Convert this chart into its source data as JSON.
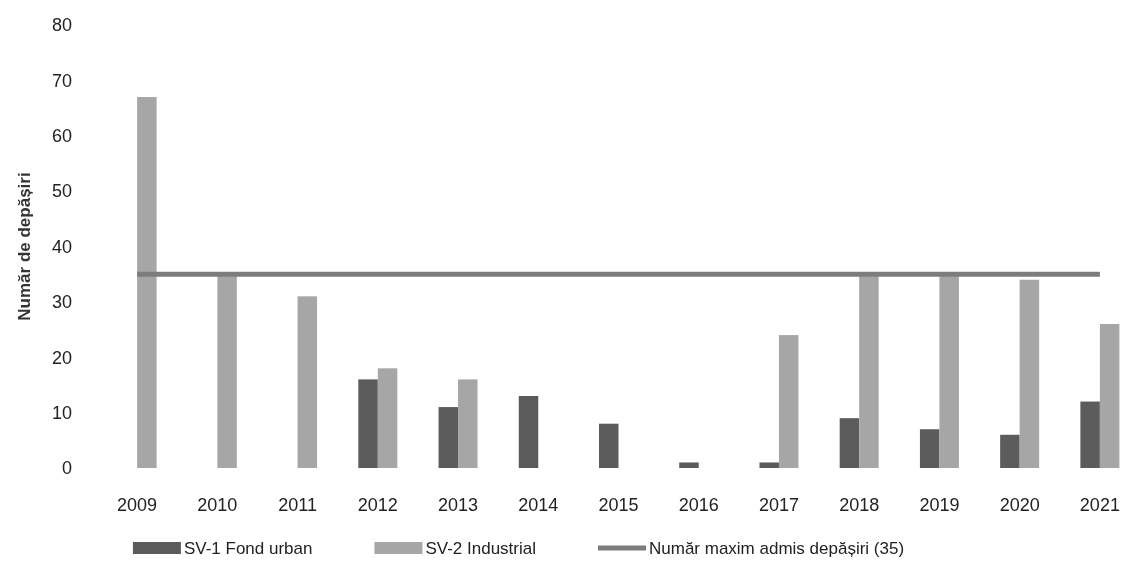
{
  "chart_data": {
    "type": "bar",
    "ylabel": "Număr de depășiri",
    "categories": [
      "2009",
      "2010",
      "2011",
      "2012",
      "2013",
      "2014",
      "2015",
      "2016",
      "2017",
      "2018",
      "2019",
      "2020",
      "2021"
    ],
    "series": [
      {
        "name": "SV-1 Fond urban",
        "color": "#5c5c5c",
        "values": [
          null,
          null,
          null,
          16,
          11,
          13,
          8,
          1,
          1,
          9,
          7,
          6,
          12
        ]
      },
      {
        "name": "SV-2 Industrial",
        "color": "#a6a6a6",
        "values": [
          67,
          35,
          31,
          18,
          16,
          null,
          null,
          null,
          24,
          35,
          35,
          34,
          26
        ]
      },
      {
        "name": "Număr maxim admis depășiri (35)",
        "type": "line",
        "color": "#7c7c7c",
        "values": [
          35,
          35,
          35,
          35,
          35,
          35,
          35,
          35,
          35,
          35,
          35,
          35,
          35
        ]
      }
    ],
    "ylim": [
      0,
      80
    ],
    "yticks": [
      0,
      10,
      20,
      30,
      40,
      50,
      60,
      70,
      80
    ],
    "legend": "bottom"
  }
}
